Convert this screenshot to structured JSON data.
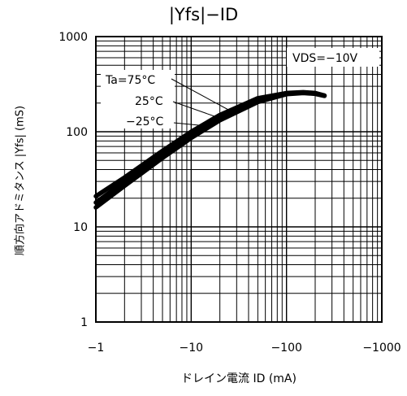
{
  "chart_data": {
    "type": "line",
    "title": "|Yfs|−ID",
    "xlabel": "ドレイン電流 ID (mA)",
    "ylabel": "順方向アドミタンス |Yfs| (mS)",
    "x_scale": "log",
    "y_scale": "log",
    "xlim": [
      -1,
      -1000
    ],
    "ylim": [
      1,
      1000
    ],
    "x_ticks": [
      "−1",
      "−10",
      "−100",
      "−1000"
    ],
    "y_ticks": [
      "1",
      "10",
      "100",
      "1000"
    ],
    "grid": true,
    "condition_label": "VDS=−10V",
    "series": [
      {
        "name": "Ta=75°C",
        "x": [
          -1,
          -2,
          -5,
          -10,
          -20,
          -50,
          -100,
          -150,
          -200,
          -250
        ],
        "y": [
          21,
          33,
          63,
          100,
          150,
          225,
          255,
          260,
          255,
          240
        ]
      },
      {
        "name": "25°C",
        "x": [
          -1,
          -2,
          -5,
          -10,
          -20,
          -50,
          -100,
          -150,
          -200,
          -250
        ],
        "y": [
          18,
          30,
          58,
          93,
          140,
          215,
          252,
          258,
          253,
          240
        ]
      },
      {
        "name": "−25°C",
        "x": [
          -1,
          -2,
          -5,
          -10,
          -20,
          -50,
          -100,
          -150,
          -200,
          -250
        ],
        "y": [
          16,
          27,
          53,
          86,
          132,
          205,
          248,
          255,
          250,
          238
        ]
      }
    ]
  }
}
